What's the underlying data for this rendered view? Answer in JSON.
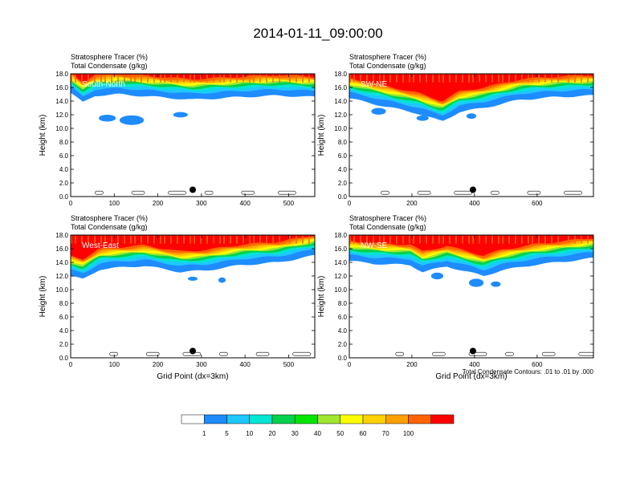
{
  "title": "2014-01-11_09:00:00",
  "footnote": "Total Condensate Contours: .01 to .01 by .000",
  "colors": [
    "#ffffff",
    "#1e8cff",
    "#1ec8ff",
    "#00e6d2",
    "#00d24b",
    "#00e600",
    "#a0e632",
    "#ffff00",
    "#ffd200",
    "#ffa000",
    "#ff6400",
    "#ff0000"
  ],
  "colorbar_labels": [
    "1",
    "5",
    "10",
    "20",
    "30",
    "40",
    "50",
    "60",
    "70",
    "100"
  ],
  "chart_data": [
    {
      "type": "heatmap",
      "subtitle1": "Stratosphere Tracer   (%)",
      "subtitle2": "Total Condensate   (g/kg)",
      "inset_label": "South-North",
      "ylabel": "Height (km)",
      "xlabel": "",
      "xlim": [
        0,
        560
      ],
      "ylim": [
        0,
        18
      ],
      "xticks": [
        "0",
        "100",
        "200",
        "300",
        "400",
        "500"
      ],
      "yticks": [
        "0.0",
        "2.0",
        "4.0",
        "6.0",
        "8.0",
        "10.0",
        "12.0",
        "14.0",
        "16.0",
        "18.0"
      ],
      "marker": {
        "x": 280,
        "y": 1.0
      }
    },
    {
      "type": "heatmap",
      "subtitle1": "Stratosphere Tracer   (%)",
      "subtitle2": "Total Condensate   (g/kg)",
      "inset_label": "SW-NE",
      "ylabel": "Height (km)",
      "xlabel": "",
      "xlim": [
        0,
        780
      ],
      "ylim": [
        0,
        18
      ],
      "xticks": [
        "0",
        "200",
        "400",
        "600"
      ],
      "yticks": [
        "0.0",
        "2.0",
        "4.0",
        "6.0",
        "8.0",
        "10.0",
        "12.0",
        "14.0",
        "16.0",
        "18.0"
      ],
      "marker": {
        "x": 395,
        "y": 1.0
      }
    },
    {
      "type": "heatmap",
      "subtitle1": "Stratosphere Tracer   (%)",
      "subtitle2": "Total Condensate   (g/kg)",
      "inset_label": "West-East",
      "ylabel": "Height (km)",
      "xlabel": "Grid Point (dx=3km)",
      "xlim": [
        0,
        560
      ],
      "ylim": [
        0,
        18
      ],
      "xticks": [
        "0",
        "100",
        "200",
        "300",
        "400",
        "500"
      ],
      "yticks": [
        "0.0",
        "2.0",
        "4.0",
        "6.0",
        "8.0",
        "10.0",
        "12.0",
        "14.0",
        "16.0",
        "18.0"
      ],
      "marker": {
        "x": 280,
        "y": 1.0
      }
    },
    {
      "type": "heatmap",
      "subtitle1": "Stratosphere Tracer   (%)",
      "subtitle2": "Total Condensate   (g/kg)",
      "inset_label": "NW-SE",
      "ylabel": "Height (km)",
      "xlabel": "Grid Point (dx=3km)",
      "xlim": [
        0,
        780
      ],
      "ylim": [
        0,
        18
      ],
      "xticks": [
        "0",
        "200",
        "400",
        "600"
      ],
      "yticks": [
        "0.0",
        "2.0",
        "4.0",
        "6.0",
        "8.0",
        "10.0",
        "12.0",
        "14.0",
        "16.0",
        "18.0"
      ],
      "marker": {
        "x": 395,
        "y": 1.0
      }
    }
  ]
}
